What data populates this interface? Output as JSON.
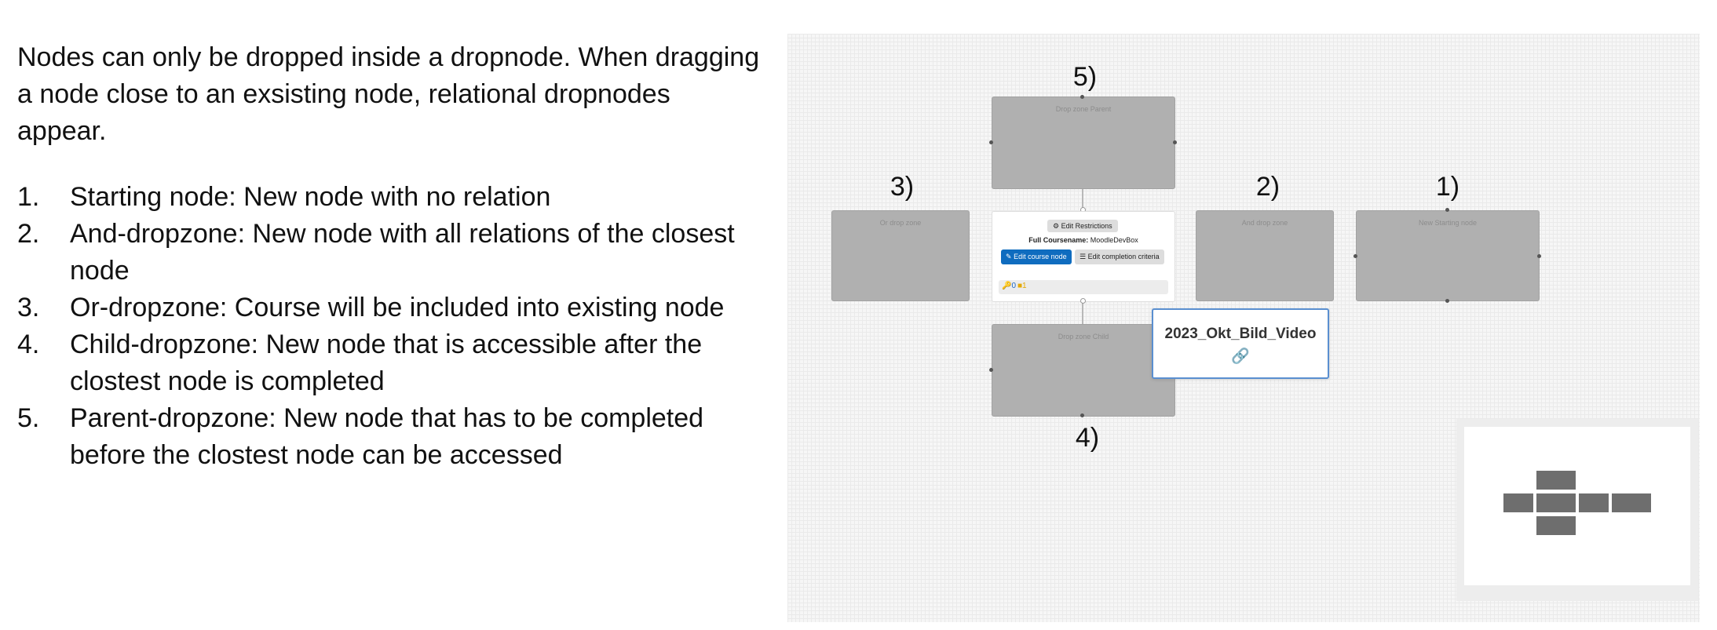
{
  "explanation": {
    "intro": "Nodes can only be dropped inside a dropnode. When dragging a node close to an exsisting node, relational dropnodes appear.",
    "steps": [
      {
        "num": "1.",
        "text": "Starting node: New node with no relation"
      },
      {
        "num": "2.",
        "text": "And-dropzone: New node with all relations of the closest node"
      },
      {
        "num": "3.",
        "text": "Or-dropzone: Course will be included into existing node"
      },
      {
        "num": "4.",
        "text": "Child-dropzone: New node that is accessible after the clostest node is completed"
      },
      {
        "num": "5.",
        "text": "Parent-dropzone: New node that has to be completed before the clostest node can be accessed"
      }
    ]
  },
  "canvas": {
    "markers": {
      "m1": "1)",
      "m2": "2)",
      "m3": "3)",
      "m4": "4)",
      "m5": "5)"
    },
    "zones": {
      "parent": "Drop zone Parent",
      "or": "Or drop zone",
      "and": "And drop zone",
      "starting": "New Starting node",
      "child": "Drop zone Child"
    },
    "center_node": {
      "edit_restrictions": "Edit Restrictions",
      "fullname_label": "Full Coursename:",
      "fullname_value": "MoodleDevBox",
      "edit_course_node": "Edit course node",
      "edit_completion": "Edit completion criteria",
      "footer_icon_key": "key-icon",
      "footer_icon_count": "user-icon",
      "footer_key_count": "0",
      "footer_user_count": "1"
    },
    "dragged_node": {
      "title": "2023_Okt_Bild_Video",
      "icon": "link-icon"
    }
  },
  "colors": {
    "primary_button": "#0f6cbf",
    "drop_zone": "#b0b0b0",
    "drag_border": "#5a8fd0",
    "minimap_node": "#6e6e6e"
  }
}
